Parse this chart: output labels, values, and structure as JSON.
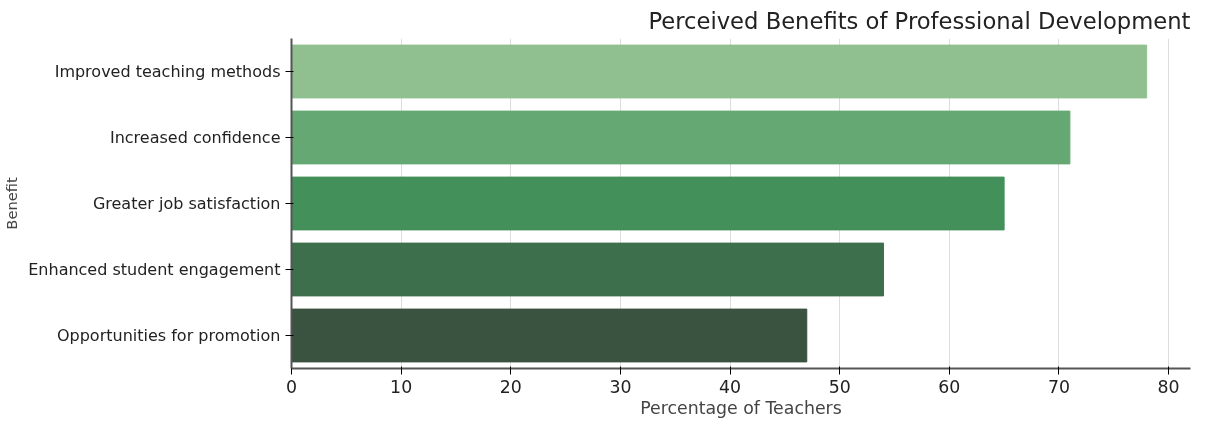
{
  "chart_data": {
    "type": "bar",
    "orientation": "horizontal",
    "title": "Perceived Benefits of Professional Development",
    "xlabel": "Percentage of Teachers",
    "ylabel": "Benefit",
    "categories": [
      "Improved teaching methods",
      "Increased confidence",
      "Greater job satisfaction",
      "Enhanced student engagement",
      "Opportunities for promotion"
    ],
    "values": [
      78,
      71,
      65,
      54,
      47
    ],
    "colors": [
      "#90c08f",
      "#66a874",
      "#43905a",
      "#3e6f4c",
      "#3a5240"
    ],
    "xlim": [
      0,
      82
    ],
    "xticks": [
      0,
      10,
      20,
      30,
      40,
      50,
      60,
      70,
      80
    ],
    "grid": "x"
  }
}
